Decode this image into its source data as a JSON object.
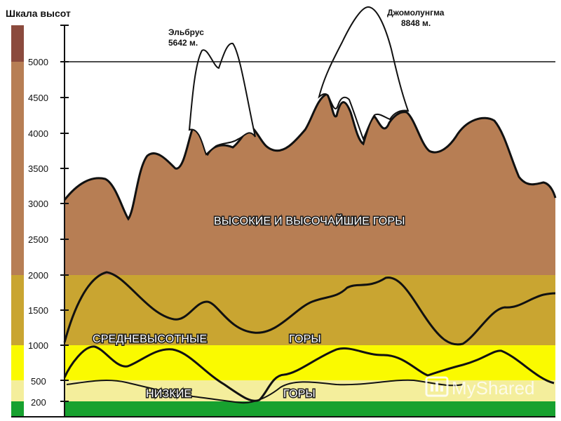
{
  "scale": {
    "title": "Шкала высот",
    "ticks": [
      "200",
      "500",
      "1000",
      "1500",
      "2000",
      "2500",
      "3000",
      "3500",
      "4000",
      "4500",
      "5000"
    ]
  },
  "peaks": {
    "elbrus": {
      "name": "Эльбрус",
      "height": "5642 м."
    },
    "everest": {
      "name": "Джомолунгма",
      "height": "8848 м."
    }
  },
  "zones": {
    "high": "ВЫСОКИЕ И ВЫСОЧАЙШИЕ ГОРЫ",
    "mid_left": "СРЕДНЕВЫСОТНЫЕ",
    "mid_right": "ГОРЫ",
    "low_left": "НИЗКИЕ",
    "low_right": "ГОРЫ"
  },
  "watermark": "MyShared",
  "colors": {
    "band_top": "#8b4a3d",
    "high": "#b77e54",
    "mid": "#c9a531",
    "low_mid": "#fafa00",
    "low": "#f4ee9c",
    "lowland": "#17a12f",
    "outline": "#111111"
  }
}
